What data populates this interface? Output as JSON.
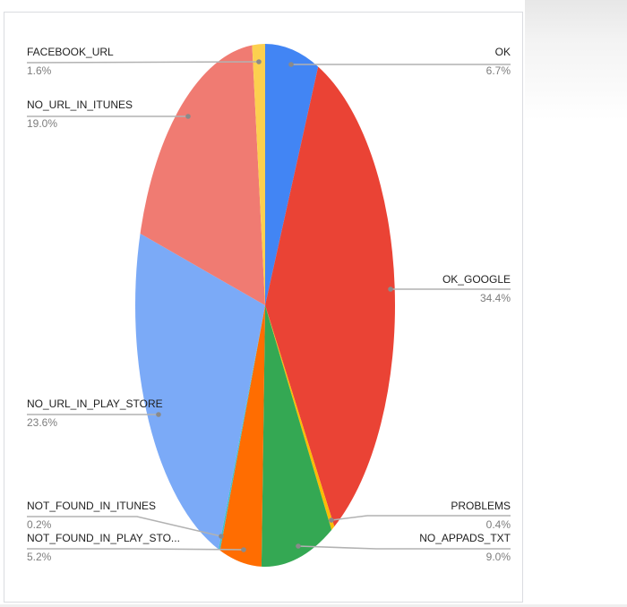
{
  "chart_data": {
    "type": "pie",
    "title": "",
    "legend_position": "labeled-callouts",
    "start_angle_deg": 0,
    "direction": "clockwise",
    "total_percent": 100.1,
    "slices": [
      {
        "label": "OK",
        "percent": "6.7%",
        "value": 6.7,
        "color": "#4285F4"
      },
      {
        "label": "OK_GOOGLE",
        "percent": "34.4%",
        "value": 34.4,
        "color": "#EA4335"
      },
      {
        "label": "PROBLEMS",
        "percent": "0.4%",
        "value": 0.4,
        "color": "#FBBC04"
      },
      {
        "label": "NO_APPADS_TXT",
        "percent": "9.0%",
        "value": 9.0,
        "color": "#34A853"
      },
      {
        "label": "NOT_FOUND_IN_PLAY_STO...",
        "percent": "5.2%",
        "value": 5.2,
        "color": "#FF6D01"
      },
      {
        "label": "NOT_FOUND_IN_ITUNES",
        "percent": "0.2%",
        "value": 0.2,
        "color": "#46BDC6"
      },
      {
        "label": "NO_URL_IN_PLAY_STORE",
        "percent": "23.6%",
        "value": 23.6,
        "color": "#7BAAF7"
      },
      {
        "label": "NO_URL_IN_ITUNES",
        "percent": "19.0%",
        "value": 19.0,
        "color": "#F07B72"
      },
      {
        "label": "FACEBOOK_URL",
        "percent": "1.6%",
        "value": 1.6,
        "color": "#FCD04F"
      }
    ],
    "colors": {
      "label_text": "#212121",
      "percent_text": "#7d7d7d",
      "leader_line": "#b2b2b2",
      "leader_dot": "#8a8a8a",
      "frame_border": "#dadce0"
    }
  }
}
